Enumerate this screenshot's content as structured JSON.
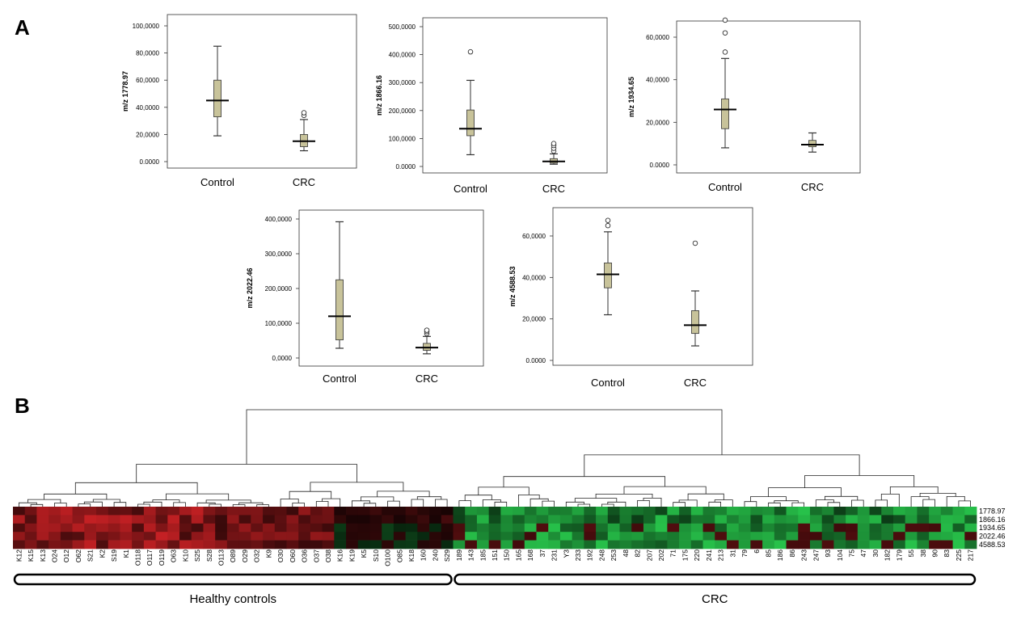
{
  "panels": {
    "a": "A",
    "b": "B"
  },
  "colors": {
    "box_fill": "#c8c39a",
    "box_stroke": "#333333",
    "heat_high": "#e8262a",
    "heat_low": "#27c24a",
    "heat_mid": "#000000"
  },
  "chart_data": [
    {
      "type": "box",
      "ylabel": "m/z 1778.97",
      "categories": [
        "Control",
        "CRC"
      ],
      "yticks": [
        "0.0000",
        "20,0000",
        "40,0000",
        "60,0000",
        "80,0000",
        "100,0000"
      ],
      "ylim": [
        0,
        100
      ],
      "boxes": [
        {
          "name": "Control",
          "min": 19,
          "q1": 33,
          "median": 45,
          "q3": 60,
          "max": 85,
          "outliers": []
        },
        {
          "name": "CRC",
          "min": 8,
          "q1": 11,
          "median": 15,
          "q3": 20,
          "max": 31,
          "outliers": [
            34,
            36
          ]
        }
      ]
    },
    {
      "type": "box",
      "ylabel": "m/z 1866.16",
      "categories": [
        "Control",
        "CRC"
      ],
      "yticks": [
        "0.0000",
        "100,0000",
        "200,0000",
        "300,0000",
        "400,0000",
        "500,0000"
      ],
      "ylim": [
        0,
        500
      ],
      "boxes": [
        {
          "name": "Control",
          "min": 42,
          "q1": 110,
          "median": 135,
          "q3": 202,
          "max": 308,
          "outliers": [
            410
          ]
        },
        {
          "name": "CRC",
          "min": 8,
          "q1": 12,
          "median": 18,
          "q3": 28,
          "max": 45,
          "outliers": [
            55,
            65,
            75,
            82
          ]
        }
      ]
    },
    {
      "type": "box",
      "ylabel": "m/z 1934.65",
      "categories": [
        "Control",
        "CRC"
      ],
      "yticks": [
        "0.0000",
        "20,0000",
        "40,0000",
        "60,0000"
      ],
      "ylim": [
        0,
        70
      ],
      "boxes": [
        {
          "name": "Control",
          "min": 8,
          "q1": 17,
          "median": 26,
          "q3": 31,
          "max": 50,
          "outliers": [
            53,
            62,
            68
          ]
        },
        {
          "name": "CRC",
          "min": 6,
          "q1": 8.5,
          "median": 9.5,
          "q3": 11.5,
          "max": 15,
          "outliers": []
        }
      ]
    },
    {
      "type": "box",
      "ylabel": "m/z 2022.46",
      "categories": [
        "Control",
        "CRC"
      ],
      "yticks": [
        "0,0000",
        "100,0000",
        "200,0000",
        "300,0000",
        "400,0000"
      ],
      "ylim": [
        0,
        420
      ],
      "boxes": [
        {
          "name": "Control",
          "min": 28,
          "q1": 52,
          "median": 120,
          "q3": 225,
          "max": 392,
          "outliers": []
        },
        {
          "name": "CRC",
          "min": 12,
          "q1": 22,
          "median": 30,
          "q3": 42,
          "max": 62,
          "outliers": [
            70,
            76,
            80
          ]
        }
      ]
    },
    {
      "type": "box",
      "ylabel": "m/z 4588.53",
      "categories": [
        "Control",
        "CRC"
      ],
      "yticks": [
        "0.0000",
        "20,0000",
        "40,0000",
        "60,0000"
      ],
      "ylim": [
        0,
        70
      ],
      "boxes": [
        {
          "name": "Control",
          "min": 22,
          "q1": 35,
          "median": 41.5,
          "q3": 47,
          "max": 62,
          "outliers": [
            65,
            67.5
          ]
        },
        {
          "name": "CRC",
          "min": 7,
          "q1": 13,
          "median": 17,
          "q3": 24,
          "max": 33.5,
          "outliers": [
            56.5
          ]
        }
      ]
    },
    {
      "type": "heatmap",
      "rows": [
        "1778.97",
        "1866.16",
        "1934.65",
        "2022.46",
        "4588.53"
      ],
      "columns": [
        "K12",
        "K15",
        "K13",
        "O24",
        "O12",
        "O62",
        "S21",
        "K2",
        "S19",
        "K1",
        "O118",
        "O117",
        "O119",
        "O63",
        "K10",
        "S25",
        "S28",
        "O113",
        "O89",
        "O29",
        "O32",
        "K9",
        "O30",
        "O60",
        "O36",
        "O37",
        "O38",
        "K16",
        "K19",
        "K5",
        "S10",
        "O100",
        "O85",
        "K18",
        "160",
        "240",
        "S29",
        "189",
        "143",
        "185",
        "151",
        "150",
        "165",
        "168",
        "37",
        "231",
        "Y3",
        "233",
        "192",
        "248",
        "253",
        "48",
        "82",
        "207",
        "202",
        "71",
        "175",
        "220",
        "241",
        "213",
        "31",
        "79",
        "6",
        "85",
        "186",
        "86",
        "243",
        "247",
        "93",
        "104",
        "75",
        "47",
        "30",
        "182",
        "179",
        "55",
        "38",
        "90",
        "83",
        "225",
        "217"
      ],
      "groups": [
        {
          "label": "Healthy controls",
          "count": 37
        },
        {
          "label": "CRC",
          "count": 44
        }
      ]
    }
  ]
}
